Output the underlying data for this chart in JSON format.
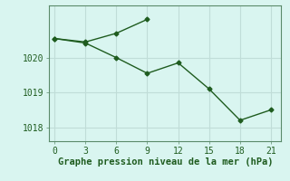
{
  "line1_x": [
    0,
    3,
    6,
    9
  ],
  "line1_y": [
    1020.55,
    1020.45,
    1020.7,
    1021.1
  ],
  "line2_x": [
    0,
    3,
    6,
    9,
    12,
    15,
    18,
    21
  ],
  "line2_y": [
    1020.55,
    1020.42,
    1020.0,
    1019.55,
    1019.85,
    1019.1,
    1018.2,
    1018.5
  ],
  "line_color": "#1f5c1f",
  "marker": "D",
  "markersize": 2.5,
  "linewidth": 1.0,
  "xlabel": "Graphe pression niveau de la mer (hPa)",
  "xlabel_color": "#1f5c1f",
  "xlabel_fontsize": 7.5,
  "background_color": "#d9f5f0",
  "grid_color": "#c0ddd8",
  "tick_color": "#1f5c1f",
  "spine_color": "#5a8a6a",
  "xlim": [
    -0.5,
    22
  ],
  "ylim": [
    1017.6,
    1021.5
  ],
  "xticks": [
    0,
    3,
    6,
    9,
    12,
    15,
    18,
    21
  ],
  "yticks": [
    1018,
    1019,
    1020
  ],
  "ytick_labels": [
    "1018",
    "1019",
    "1020"
  ]
}
